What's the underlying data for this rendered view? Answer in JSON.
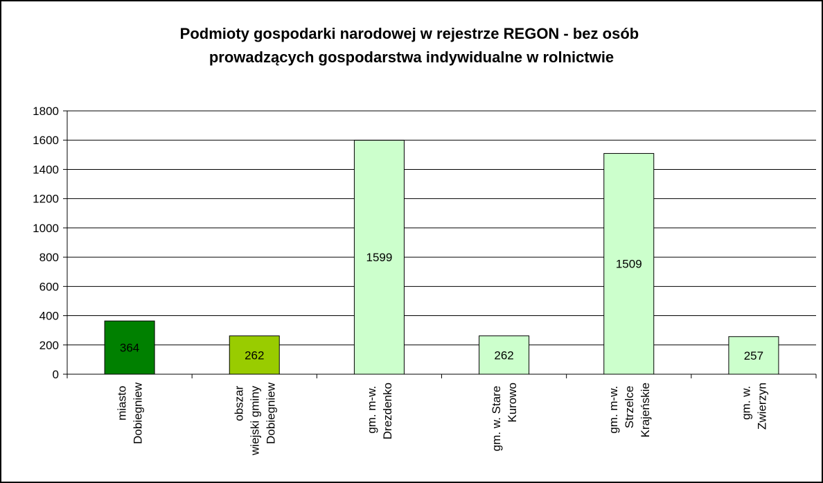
{
  "chart_data": {
    "type": "bar",
    "title": "Podmioty gospodarki narodowej w rejestrze REGON - bez osób\nprowadzących gospodarstwa indywidualne w rolnictwie",
    "categories": [
      "miasto\nDobiegniew",
      "obszar\nwiejski gminy\nDobiegniew",
      "gm. m-w.\nDrezdenko",
      "gm. w. Stare\nKurowo",
      "gm. m-w.\nStrzelce\nKrajeńskie",
      "gm. w.\nZwierzyn"
    ],
    "values": [
      364,
      262,
      1599,
      262,
      1509,
      257
    ],
    "colors": [
      "#008000",
      "#99cc00",
      "#ccffcc",
      "#ccffcc",
      "#ccffcc",
      "#ccffcc"
    ],
    "ylim": [
      0,
      1800
    ],
    "yticks": [
      0,
      200,
      400,
      600,
      800,
      1000,
      1200,
      1400,
      1600,
      1800
    ],
    "grid": true
  }
}
